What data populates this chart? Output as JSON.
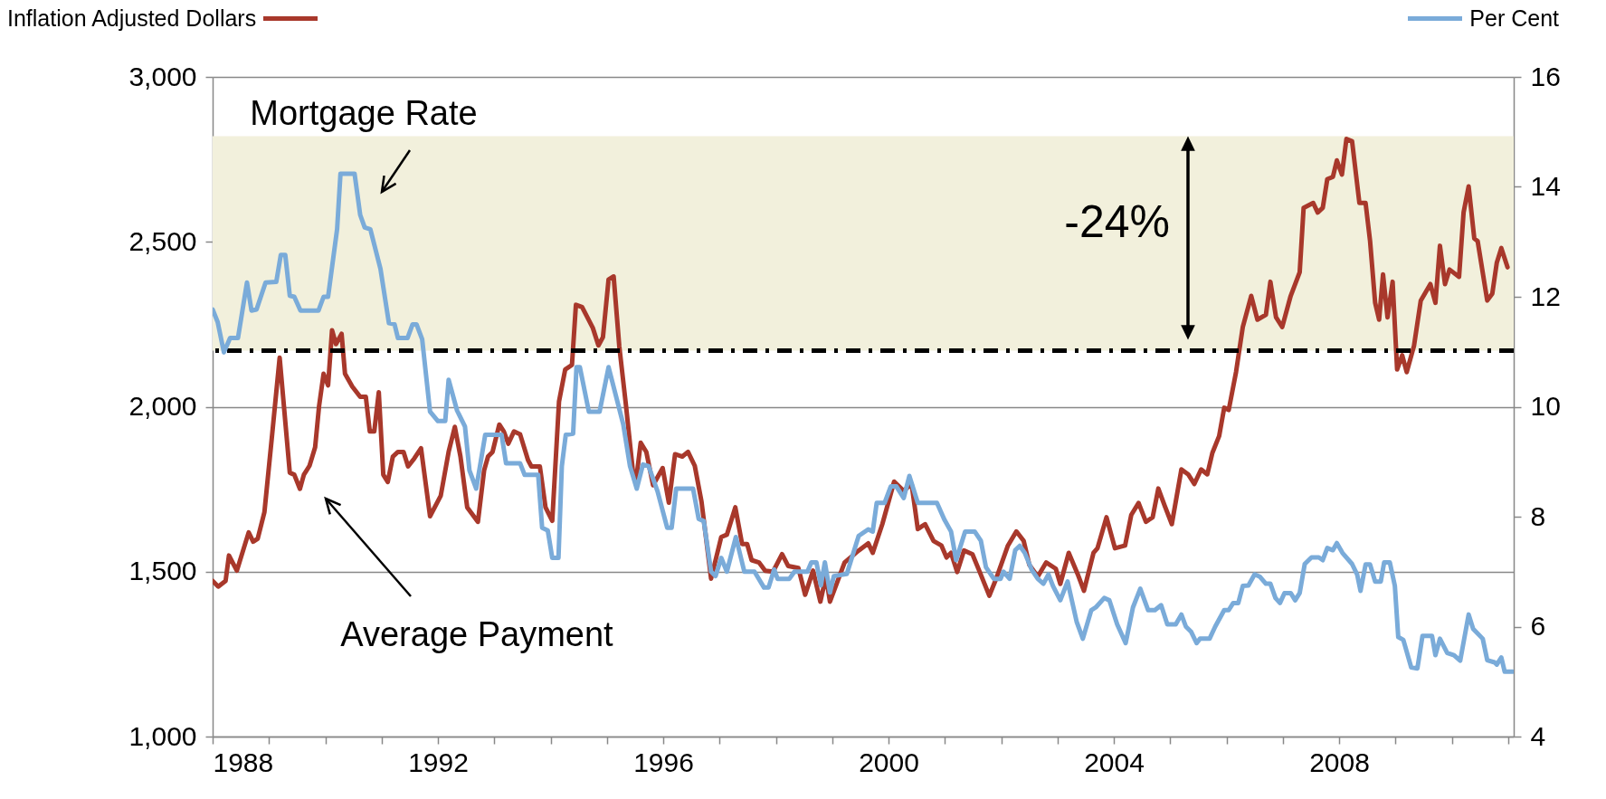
{
  "chart_data": {
    "type": "line",
    "ylabel": "Inflation Adjusted Dollars",
    "y2label": "Per Cent",
    "xlim": [
      1988,
      2011.1
    ],
    "xticks": [
      1988,
      {
        "value": 1989,
        "label": null
      },
      {
        "value": 1990,
        "label": null
      },
      {
        "value": 1991,
        "label": null
      },
      1992,
      {
        "value": 1993,
        "label": null
      },
      {
        "value": 1994,
        "label": null
      },
      {
        "value": 1995,
        "label": null
      },
      1996,
      {
        "value": 1997,
        "label": null
      },
      {
        "value": 1998,
        "label": null
      },
      {
        "value": 1999,
        "label": null
      },
      2000,
      {
        "value": 2001,
        "label": null
      },
      {
        "value": 2002,
        "label": null
      },
      {
        "value": 2003,
        "label": null
      },
      2004,
      {
        "value": 2005,
        "label": null
      },
      {
        "value": 2006,
        "label": null
      },
      {
        "value": 2007,
        "label": null
      },
      2008,
      {
        "value": 2009,
        "label": null
      },
      {
        "value": 2010,
        "label": null
      },
      {
        "value": 2011,
        "label": null
      }
    ],
    "ylim": [
      1000,
      3000
    ],
    "yticks": [
      {
        "value": 1000,
        "label": "1,000"
      },
      {
        "value": 1500,
        "label": "1,500"
      },
      {
        "value": 2000,
        "label": "2,000"
      },
      {
        "value": 2500,
        "label": "2,500"
      },
      {
        "value": 3000,
        "label": "3,000"
      }
    ],
    "y2lim": [
      4,
      16
    ],
    "y2ticks": [
      4,
      6,
      8,
      10,
      12,
      14,
      16
    ],
    "grid": "y",
    "series": [
      {
        "color": "#a8382b",
        "axis": "y",
        "x": [
          1988.0,
          1988.1,
          1988.23,
          1988.29,
          1988.43,
          1988.64,
          1988.72,
          1988.8,
          1988.92,
          1989.05,
          1989.19,
          1989.37,
          1989.45,
          1989.55,
          1989.62,
          1989.72,
          1989.82,
          1989.89,
          1989.97,
          1990.05,
          1990.12,
          1990.19,
          1990.29,
          1990.35,
          1990.48,
          1990.62,
          1990.72,
          1990.79,
          1990.87,
          1990.95,
          1991.03,
          1991.11,
          1991.2,
          1991.29,
          1991.39,
          1991.47,
          1991.58,
          1991.7,
          1991.86,
          1992.05,
          1992.19,
          1992.3,
          1992.4,
          1992.52,
          1992.71,
          1992.82,
          1992.89,
          1992.97,
          1993.09,
          1993.17,
          1993.25,
          1993.35,
          1993.46,
          1993.6,
          1993.66,
          1993.81,
          1993.91,
          1994.03,
          1994.15,
          1994.26,
          1994.38,
          1994.45,
          1994.56,
          1994.75,
          1994.85,
          1994.93,
          1995.03,
          1995.12,
          1995.22,
          1995.34,
          1995.46,
          1995.52,
          1995.6,
          1995.7,
          1995.82,
          1995.99,
          1996.1,
          1996.21,
          1996.34,
          1996.44,
          1996.56,
          1996.68,
          1996.85,
          1997.03,
          1997.13,
          1997.28,
          1997.4,
          1997.49,
          1997.57,
          1997.7,
          1997.81,
          1997.95,
          1998.11,
          1998.22,
          1998.4,
          1998.52,
          1998.66,
          1998.79,
          1998.89,
          1998.96,
          1999.22,
          1999.47,
          1999.64,
          1999.72,
          1999.89,
          2000.1,
          2000.27,
          2000.41,
          2000.52,
          2000.65,
          2000.8,
          2000.94,
          2001.03,
          2001.11,
          2001.22,
          2001.34,
          2001.49,
          2001.62,
          2001.79,
          2001.91,
          2002.12,
          2002.27,
          2002.4,
          2002.5,
          2002.65,
          2002.8,
          2002.97,
          2003.05,
          2003.2,
          2003.36,
          2003.47,
          2003.64,
          2003.71,
          2003.87,
          2004.02,
          2004.2,
          2004.31,
          2004.44,
          2004.57,
          2004.69,
          2004.79,
          2004.9,
          2005.03,
          2005.2,
          2005.32,
          2005.43,
          2005.55,
          2005.66,
          2005.75,
          2005.87,
          2005.96,
          2006.04,
          2006.17,
          2006.29,
          2006.44,
          2006.55,
          2006.7,
          2006.78,
          2006.88,
          2006.99,
          2007.14,
          2007.3,
          2007.37,
          2007.54,
          2007.62,
          2007.71,
          2007.79,
          2007.89,
          2007.96,
          2008.05,
          2008.13,
          2008.23,
          2008.36,
          2008.47,
          2008.55,
          2008.64,
          2008.71,
          2008.78,
          2008.86,
          2008.95,
          2009.03,
          2009.12,
          2009.2,
          2009.33,
          2009.45,
          2009.62,
          2009.71,
          2009.79,
          2009.88,
          2009.96,
          2010.13,
          2010.21,
          2010.3,
          2010.4,
          2010.46,
          2010.63,
          2010.72,
          2010.8,
          2010.88,
          2010.99
        ],
        "values": [
          1472,
          1455,
          1472,
          1549,
          1503,
          1619,
          1591,
          1600,
          1681,
          1904,
          2149,
          1800,
          1794,
          1751,
          1794,
          1821,
          1877,
          2002,
          2100,
          2065,
          2232,
          2190,
          2221,
          2100,
          2061,
          2030,
          2030,
          1925,
          1925,
          2044,
          1794,
          1772,
          1849,
          1863,
          1863,
          1819,
          1843,
          1874,
          1668,
          1730,
          1863,
          1939,
          1849,
          1695,
          1651,
          1807,
          1849,
          1863,
          1946,
          1925,
          1888,
          1925,
          1916,
          1838,
          1819,
          1819,
          1695,
          1654,
          2016,
          2113,
          2127,
          2309,
          2302,
          2239,
          2186,
          2211,
          2386,
          2395,
          2183,
          2002,
          1807,
          1779,
          1891,
          1863,
          1762,
          1814,
          1709,
          1856,
          1849,
          1863,
          1821,
          1712,
          1479,
          1605,
          1612,
          1695,
          1584,
          1584,
          1535,
          1528,
          1503,
          1500,
          1553,
          1517,
          1511,
          1430,
          1503,
          1409,
          1486,
          1409,
          1528,
          1564,
          1586,
          1557,
          1644,
          1773,
          1745,
          1766,
          1629,
          1644,
          1593,
          1579,
          1543,
          1557,
          1499,
          1564,
          1553,
          1499,
          1427,
          1478,
          1579,
          1622,
          1593,
          1521,
          1485,
          1528,
          1509,
          1463,
          1557,
          1492,
          1442,
          1557,
          1571,
          1665,
          1571,
          1579,
          1672,
          1708,
          1651,
          1665,
          1752,
          1701,
          1644,
          1810,
          1795,
          1766,
          1810,
          1795,
          1860,
          1911,
          1997,
          1990,
          2105,
          2242,
          2336,
          2264,
          2279,
          2379,
          2271,
          2242,
          2336,
          2408,
          2603,
          2618,
          2589,
          2603,
          2690,
          2697,
          2747,
          2704,
          2812,
          2805,
          2618,
          2618,
          2502,
          2315,
          2264,
          2401,
          2271,
          2379,
          2113,
          2156,
          2105,
          2185,
          2322,
          2372,
          2315,
          2488,
          2372,
          2416,
          2394,
          2589,
          2668,
          2510,
          2502,
          2322,
          2343,
          2437,
          2481,
          2423
        ]
      },
      {
        "color": "#7aabd9",
        "axis": "y2",
        "x": [
          1988.0,
          1988.09,
          1988.2,
          1988.31,
          1988.45,
          1988.61,
          1988.69,
          1988.78,
          1988.94,
          1989.13,
          1989.21,
          1989.29,
          1989.37,
          1989.45,
          1989.56,
          1989.88,
          1989.97,
          1990.05,
          1990.21,
          1990.27,
          1990.52,
          1990.62,
          1990.7,
          1990.8,
          1990.98,
          1991.13,
          1991.23,
          1991.29,
          1991.46,
          1991.55,
          1991.62,
          1991.72,
          1991.86,
          1992.0,
          1992.13,
          1992.19,
          1992.34,
          1992.48,
          1992.56,
          1992.68,
          1992.84,
          1993.13,
          1993.21,
          1993.46,
          1993.54,
          1993.78,
          1993.85,
          1993.95,
          1994.03,
          1994.14,
          1994.2,
          1994.27,
          1994.4,
          1994.46,
          1994.52,
          1994.68,
          1994.87,
          1995.03,
          1995.29,
          1995.41,
          1995.53,
          1995.64,
          1995.74,
          1995.9,
          1996.07,
          1996.15,
          1996.23,
          1996.53,
          1996.63,
          1996.72,
          1996.85,
          1996.93,
          1997.03,
          1997.13,
          1997.29,
          1997.44,
          1997.62,
          1997.79,
          1997.87,
          1997.97,
          1998.03,
          1998.24,
          1998.33,
          1998.56,
          1998.63,
          1998.72,
          1998.8,
          1998.87,
          1998.96,
          1999.03,
          1999.26,
          1999.47,
          1999.64,
          1999.72,
          1999.79,
          1999.93,
          2000.04,
          2000.14,
          2000.27,
          2000.37,
          2000.52,
          2000.86,
          2000.99,
          2001.11,
          2001.2,
          2001.36,
          2001.53,
          2001.64,
          2001.73,
          2001.87,
          2001.99,
          2002.04,
          2002.15,
          2002.25,
          2002.33,
          2002.42,
          2002.54,
          2002.65,
          2002.75,
          2002.84,
          2002.92,
          2003.05,
          2003.18,
          2003.34,
          2003.45,
          2003.6,
          2003.68,
          2003.83,
          2003.92,
          2004.06,
          2004.21,
          2004.34,
          2004.47,
          2004.61,
          2004.73,
          2004.84,
          2004.95,
          2005.1,
          2005.2,
          2005.28,
          2005.37,
          2005.47,
          2005.53,
          2005.7,
          2005.8,
          2005.96,
          2006.04,
          2006.12,
          2006.21,
          2006.29,
          2006.39,
          2006.5,
          2006.59,
          2006.7,
          2006.78,
          2006.87,
          2006.95,
          2007.03,
          2007.14,
          2007.22,
          2007.3,
          2007.39,
          2007.51,
          2007.64,
          2007.71,
          2007.79,
          2007.89,
          2007.96,
          2008.06,
          2008.23,
          2008.32,
          2008.38,
          2008.47,
          2008.55,
          2008.64,
          2008.74,
          2008.8,
          2008.9,
          2008.99,
          2009.05,
          2009.14,
          2009.28,
          2009.39,
          2009.48,
          2009.65,
          2009.71,
          2009.79,
          2009.92,
          2010.04,
          2010.15,
          2010.3,
          2010.38,
          2010.55,
          2010.63,
          2010.76,
          2010.8,
          2010.88,
          2010.94,
          2011.08
        ],
        "values": [
          11.77,
          11.54,
          10.99,
          11.25,
          11.25,
          12.26,
          11.75,
          11.77,
          12.26,
          12.27,
          12.76,
          12.76,
          12.02,
          12.0,
          11.75,
          11.75,
          12.0,
          12.0,
          13.23,
          14.24,
          14.24,
          13.49,
          13.26,
          13.23,
          12.51,
          11.52,
          11.5,
          11.25,
          11.25,
          11.5,
          11.5,
          11.23,
          9.91,
          9.74,
          9.74,
          10.49,
          9.93,
          9.64,
          8.84,
          8.51,
          9.49,
          9.49,
          8.97,
          8.97,
          8.76,
          8.76,
          7.8,
          7.75,
          7.25,
          7.25,
          8.92,
          9.49,
          9.51,
          10.72,
          10.72,
          9.91,
          9.91,
          10.72,
          9.68,
          8.92,
          8.51,
          8.95,
          8.92,
          8.46,
          7.8,
          7.8,
          8.51,
          8.51,
          7.96,
          7.92,
          7.0,
          6.92,
          7.25,
          7.0,
          7.63,
          7.0,
          7.0,
          6.71,
          6.71,
          7.04,
          6.87,
          6.87,
          7.0,
          7.0,
          7.17,
          7.17,
          6.75,
          7.17,
          6.62,
          6.92,
          6.96,
          7.65,
          7.77,
          7.73,
          8.25,
          8.25,
          8.55,
          8.55,
          8.34,
          8.74,
          8.25,
          8.25,
          7.95,
          7.73,
          7.21,
          7.73,
          7.73,
          7.56,
          7.08,
          6.87,
          6.87,
          7.0,
          6.87,
          7.39,
          7.47,
          7.34,
          7.04,
          6.87,
          6.78,
          6.95,
          6.74,
          6.48,
          6.82,
          6.09,
          5.78,
          6.3,
          6.35,
          6.52,
          6.48,
          6.04,
          5.7,
          6.35,
          6.69,
          6.3,
          6.3,
          6.39,
          6.04,
          6.04,
          6.22,
          6.0,
          5.91,
          5.7,
          5.78,
          5.78,
          6.0,
          6.3,
          6.3,
          6.43,
          6.43,
          6.74,
          6.75,
          6.95,
          6.91,
          6.78,
          6.78,
          6.52,
          6.43,
          6.61,
          6.61,
          6.48,
          6.61,
          7.14,
          7.26,
          7.26,
          7.21,
          7.43,
          7.39,
          7.52,
          7.34,
          7.14,
          6.95,
          6.65,
          7.13,
          7.13,
          6.82,
          6.82,
          7.17,
          7.17,
          6.74,
          5.81,
          5.76,
          5.26,
          5.24,
          5.83,
          5.83,
          5.48,
          5.78,
          5.52,
          5.48,
          5.38,
          6.22,
          5.96,
          5.78,
          5.39,
          5.35,
          5.31,
          5.44,
          5.18,
          5.18
        ]
      }
    ],
    "bands": [
      {
        "axis": "y",
        "from": 2170,
        "to": 2820,
        "color": "#f2f0dc"
      }
    ],
    "ref_lines": [
      {
        "axis": "y",
        "value": 2170,
        "color": "#000000",
        "line_style": "dashed"
      }
    ],
    "annotations": [
      "Mortgage Rate",
      "Average Payment",
      "-24%"
    ]
  }
}
